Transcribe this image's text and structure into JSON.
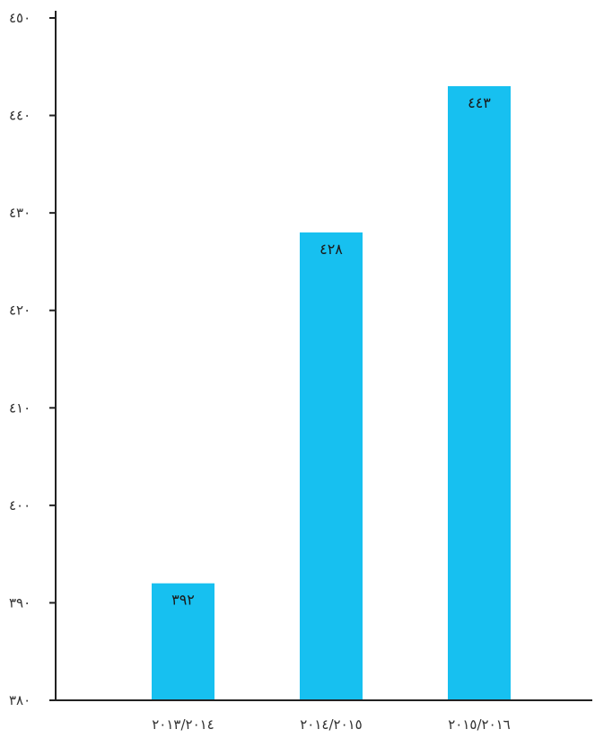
{
  "chart_data": {
    "type": "bar",
    "title": "",
    "xlabel": "",
    "ylabel": "",
    "categories": [
      "٢٠١٣/٢٠١٤",
      "٢٠١٤/٢٠١٥",
      "٢٠١٥/٢٠١٦"
    ],
    "values": [
      392,
      428,
      443
    ],
    "value_labels": [
      "٣٩٢",
      "٤٢٨",
      "٤٤٣"
    ],
    "ylim": [
      380,
      450
    ],
    "yticks": [
      380,
      390,
      400,
      410,
      420,
      430,
      440,
      450
    ],
    "ytick_labels": [
      "٣٨٠",
      "٣٩٠",
      "٤٠٠",
      "٤١٠",
      "٤٢٠",
      "٤٣٠",
      "٤٤٠",
      "٤٥٠"
    ],
    "grid": false,
    "legend": "none",
    "colors": {
      "bar": "#17c0f0",
      "axis": "#222222"
    }
  }
}
